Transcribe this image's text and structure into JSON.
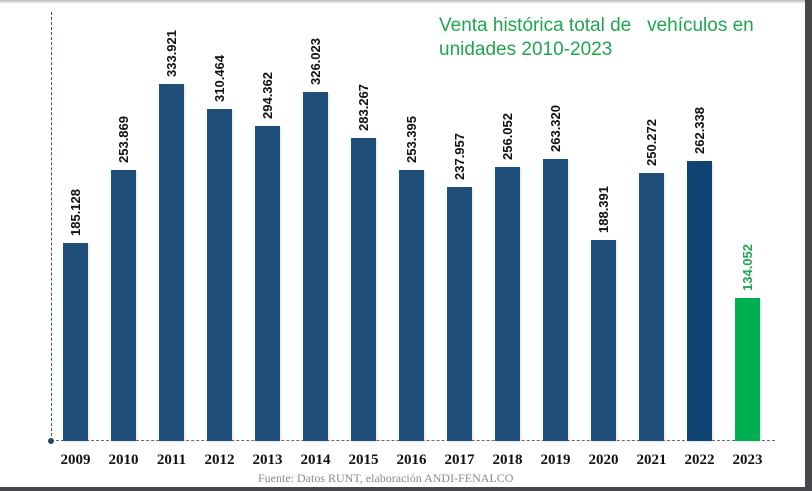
{
  "title": "Venta histórica total de   vehículos en unidades 2010-2023",
  "source": "Fuente: Datos RUNT, elaboración ANDI-FENALCO",
  "colors": {
    "bar_default": "#1f4e79",
    "bar_2022": "#0f4474",
    "bar_highlight": "#00b050",
    "title": "#1fa64e",
    "label_default": "#111111",
    "label_highlight": "#1fa64e"
  },
  "bars": [
    {
      "year": "2009",
      "label": "185.128"
    },
    {
      "year": "2010",
      "label": "253.869"
    },
    {
      "year": "2011",
      "label": "333.921"
    },
    {
      "year": "2012",
      "label": "310.464"
    },
    {
      "year": "2013",
      "label": "294.362"
    },
    {
      "year": "2014",
      "label": "326.023"
    },
    {
      "year": "2015",
      "label": "283.267"
    },
    {
      "year": "2016",
      "label": "253.395"
    },
    {
      "year": "2017",
      "label": "237.957"
    },
    {
      "year": "2018",
      "label": "256.052"
    },
    {
      "year": "2019",
      "label": "263.320"
    },
    {
      "year": "2020",
      "label": "188.391"
    },
    {
      "year": "2021",
      "label": "250.272"
    },
    {
      "year": "2022",
      "label": "262.338"
    },
    {
      "year": "2023",
      "label": "134.052"
    }
  ],
  "chart_data": {
    "type": "bar",
    "title": "Venta histórica total de vehículos en unidades 2010-2023",
    "xlabel": "",
    "ylabel": "",
    "categories": [
      "2009",
      "2010",
      "2011",
      "2012",
      "2013",
      "2014",
      "2015",
      "2016",
      "2017",
      "2018",
      "2019",
      "2020",
      "2021",
      "2022",
      "2023"
    ],
    "values": [
      185128,
      253869,
      333921,
      310464,
      294362,
      326023,
      283267,
      253395,
      237957,
      256052,
      263320,
      188391,
      250272,
      262338,
      134052
    ],
    "highlighted_category": "2023",
    "ylim": [
      0,
      400000
    ],
    "grid": false,
    "legend": null,
    "annotations": [
      "Fuente: Datos RUNT, elaboración ANDI-FENALCO"
    ],
    "data_labels": "rotated vertical above bars"
  }
}
